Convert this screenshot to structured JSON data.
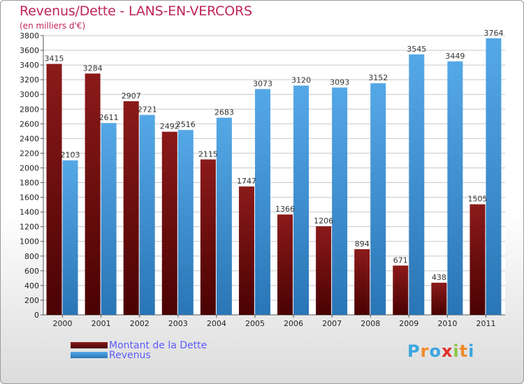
{
  "title": "Revenus/Dette - LANS-EN-VERCORS",
  "subtitle": "(en milliers d'€)",
  "brand": {
    "letters": [
      "P",
      "r",
      "o",
      "x",
      "i",
      "t",
      "i"
    ],
    "colors": [
      "#3aa6e0",
      "#f08a2a",
      "#3aa6e0",
      "#e0302a",
      "#8cc63f",
      "#f08a2a",
      "#3aa6e0"
    ]
  },
  "colors": {
    "dette": "#8b1a1a",
    "dette_dark": "#4a0202",
    "revenus": "#55a8e6",
    "revenus_dark": "#2a75b5",
    "legend_text": "#5b5bff",
    "title": "#c0245a"
  },
  "legend": {
    "position": "bottom-left",
    "dette_label": "Montant de la Dette",
    "revenus_label": "Revenus"
  },
  "chart_data": {
    "type": "bar",
    "title": "Revenus/Dette - LANS-EN-VERCORS",
    "subtitle": "(en milliers d'€)",
    "categories": [
      "2000",
      "2001",
      "2002",
      "2003",
      "2004",
      "2005",
      "2006",
      "2007",
      "2008",
      "2009",
      "2010",
      "2011"
    ],
    "series": [
      {
        "name": "Montant de la Dette",
        "values": [
          3415,
          3284,
          2907,
          2492,
          2115,
          1747,
          1366,
          1206,
          894,
          671,
          438,
          1505
        ]
      },
      {
        "name": "Revenus",
        "values": [
          2103,
          2611,
          2721,
          2516,
          2683,
          3073,
          3120,
          3093,
          3152,
          3545,
          3449,
          3764
        ]
      }
    ],
    "ylim": [
      0,
      3800
    ],
    "ytick_step": 200,
    "grid": true,
    "xlabel": "",
    "ylabel": ""
  }
}
